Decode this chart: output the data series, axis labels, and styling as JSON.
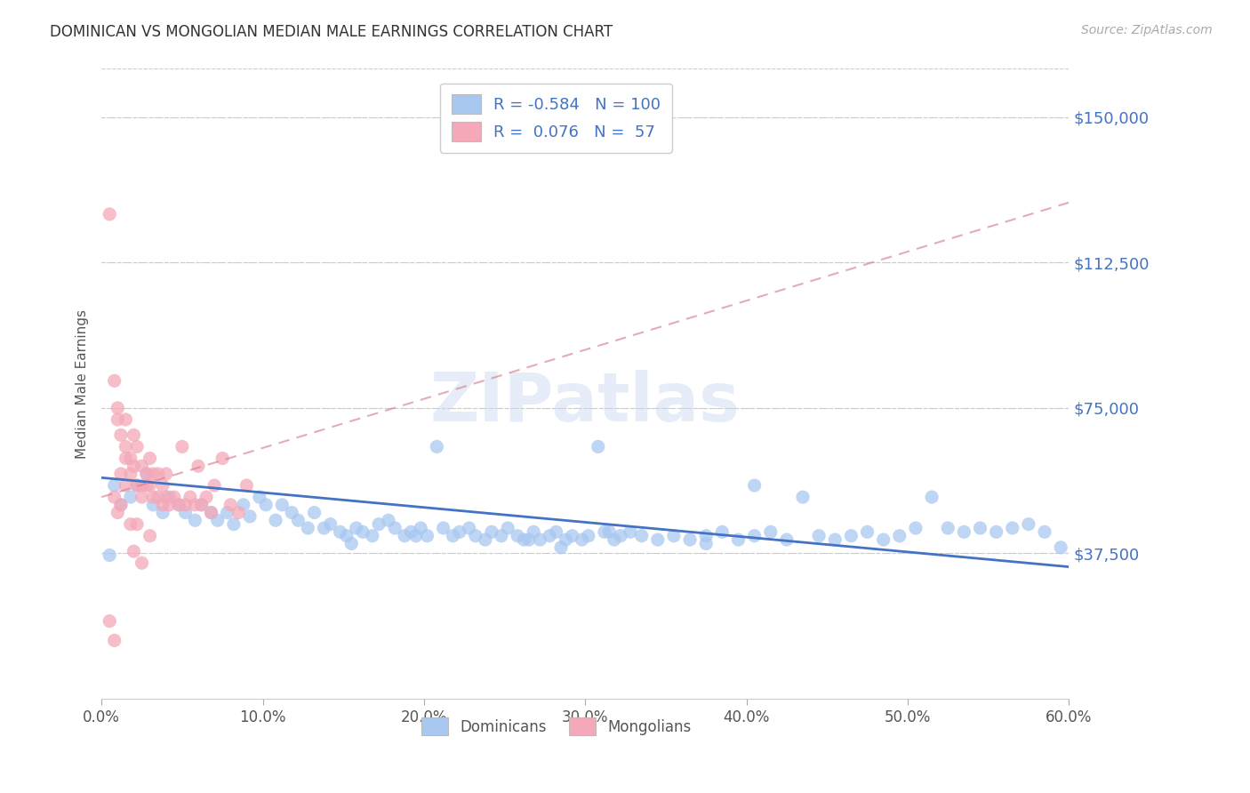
{
  "title": "DOMINICAN VS MONGOLIAN MEDIAN MALE EARNINGS CORRELATION CHART",
  "source": "Source: ZipAtlas.com",
  "ylabel": "Median Male Earnings",
  "watermark": "ZIPatlas",
  "xlim": [
    0.0,
    0.6
  ],
  "ylim": [
    0,
    162500
  ],
  "xtick_labels": [
    "0.0%",
    "10.0%",
    "20.0%",
    "30.0%",
    "40.0%",
    "50.0%",
    "60.0%"
  ],
  "xtick_vals": [
    0.0,
    0.1,
    0.2,
    0.3,
    0.4,
    0.5,
    0.6
  ],
  "ytick_vals": [
    37500,
    75000,
    112500,
    150000
  ],
  "ytick_labels": [
    "$37,500",
    "$75,000",
    "$112,500",
    "$150,000"
  ],
  "dominican_color": "#a8c8f0",
  "mongolian_color": "#f4a8b8",
  "dominican_line_color": "#4472c4",
  "mongolian_line_color": "#d48090",
  "dominican_R": -0.584,
  "dominican_N": 100,
  "mongolian_R": 0.076,
  "mongolian_N": 57,
  "legend_text_color": "#4472c4",
  "right_tick_color": "#4472c4",
  "background_color": "#ffffff",
  "grid_color": "#cccccc",
  "dominican_scatter_x": [
    0.008,
    0.012,
    0.018,
    0.022,
    0.028,
    0.032,
    0.038,
    0.042,
    0.048,
    0.052,
    0.058,
    0.062,
    0.068,
    0.072,
    0.078,
    0.082,
    0.088,
    0.092,
    0.098,
    0.102,
    0.108,
    0.112,
    0.118,
    0.122,
    0.128,
    0.132,
    0.138,
    0.142,
    0.148,
    0.152,
    0.158,
    0.162,
    0.168,
    0.172,
    0.178,
    0.182,
    0.188,
    0.192,
    0.198,
    0.202,
    0.208,
    0.212,
    0.218,
    0.222,
    0.228,
    0.232,
    0.238,
    0.242,
    0.248,
    0.252,
    0.258,
    0.262,
    0.268,
    0.272,
    0.278,
    0.282,
    0.288,
    0.292,
    0.298,
    0.302,
    0.308,
    0.312,
    0.318,
    0.322,
    0.328,
    0.335,
    0.345,
    0.355,
    0.365,
    0.375,
    0.385,
    0.395,
    0.405,
    0.415,
    0.425,
    0.435,
    0.445,
    0.455,
    0.465,
    0.475,
    0.485,
    0.495,
    0.505,
    0.515,
    0.525,
    0.535,
    0.545,
    0.555,
    0.565,
    0.575,
    0.585,
    0.595,
    0.285,
    0.195,
    0.155,
    0.315,
    0.265,
    0.375,
    0.405,
    0.005
  ],
  "dominican_scatter_y": [
    55000,
    50000,
    52000,
    55000,
    58000,
    50000,
    48000,
    52000,
    50000,
    48000,
    46000,
    50000,
    48000,
    46000,
    48000,
    45000,
    50000,
    47000,
    52000,
    50000,
    46000,
    50000,
    48000,
    46000,
    44000,
    48000,
    44000,
    45000,
    43000,
    42000,
    44000,
    43000,
    42000,
    45000,
    46000,
    44000,
    42000,
    43000,
    44000,
    42000,
    65000,
    44000,
    42000,
    43000,
    44000,
    42000,
    41000,
    43000,
    42000,
    44000,
    42000,
    41000,
    43000,
    41000,
    42000,
    43000,
    41000,
    42000,
    41000,
    42000,
    65000,
    43000,
    41000,
    42000,
    43000,
    42000,
    41000,
    42000,
    41000,
    42000,
    43000,
    41000,
    42000,
    43000,
    41000,
    52000,
    42000,
    41000,
    42000,
    43000,
    41000,
    42000,
    44000,
    52000,
    44000,
    43000,
    44000,
    43000,
    44000,
    45000,
    43000,
    39000,
    39000,
    42000,
    40000,
    43000,
    41000,
    40000,
    55000,
    37000
  ],
  "mongolian_scatter_x": [
    0.005,
    0.008,
    0.01,
    0.012,
    0.015,
    0.015,
    0.018,
    0.018,
    0.02,
    0.02,
    0.022,
    0.022,
    0.025,
    0.025,
    0.025,
    0.028,
    0.028,
    0.03,
    0.03,
    0.032,
    0.032,
    0.035,
    0.035,
    0.038,
    0.038,
    0.04,
    0.04,
    0.042,
    0.045,
    0.048,
    0.05,
    0.052,
    0.055,
    0.058,
    0.06,
    0.062,
    0.065,
    0.068,
    0.07,
    0.075,
    0.08,
    0.085,
    0.09,
    0.01,
    0.015,
    0.008,
    0.012,
    0.005,
    0.008,
    0.018,
    0.022,
    0.015,
    0.02,
    0.012,
    0.025,
    0.03,
    0.01
  ],
  "mongolian_scatter_y": [
    125000,
    82000,
    72000,
    68000,
    72000,
    65000,
    62000,
    58000,
    68000,
    60000,
    65000,
    55000,
    60000,
    55000,
    52000,
    58000,
    55000,
    62000,
    55000,
    58000,
    52000,
    58000,
    52000,
    55000,
    50000,
    58000,
    52000,
    50000,
    52000,
    50000,
    65000,
    50000,
    52000,
    50000,
    60000,
    50000,
    52000,
    48000,
    55000,
    62000,
    50000,
    48000,
    55000,
    48000,
    55000,
    52000,
    50000,
    20000,
    15000,
    45000,
    45000,
    62000,
    38000,
    58000,
    35000,
    42000,
    75000
  ],
  "dominican_trendline_x": [
    0.0,
    0.6
  ],
  "dominican_trendline_y": [
    57000,
    34000
  ],
  "mongolian_trendline_x": [
    0.0,
    0.6
  ],
  "mongolian_trendline_y": [
    52000,
    128000
  ]
}
